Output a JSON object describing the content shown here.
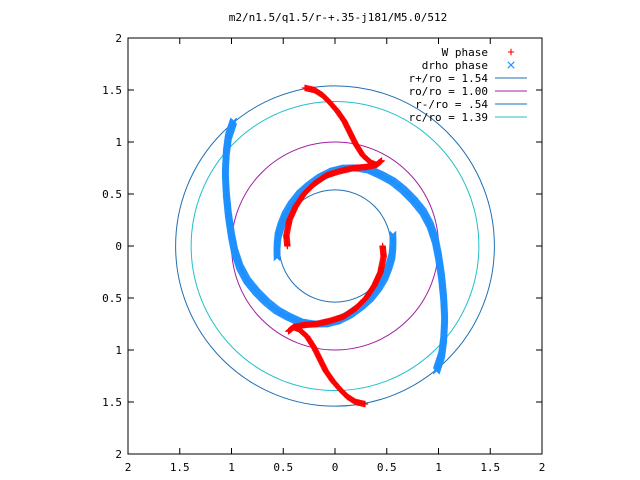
{
  "chart_data": {
    "type": "scatter",
    "title": "m2/n1.5/q1.5/r-+.35-j181/M5.0/512",
    "xlabel": "",
    "ylabel": "",
    "xlim": [
      -2,
      2
    ],
    "ylim": [
      -2,
      2
    ],
    "x_ticks": [
      "2",
      "1.5",
      "1",
      "0.5",
      "0",
      "0.5",
      "1",
      "1.5",
      "2"
    ],
    "y_ticks": [
      "2",
      "1.5",
      "1",
      "0.5",
      "0",
      "0.5",
      "1",
      "1.5",
      "2"
    ],
    "grid": false,
    "legend_position": "top-right",
    "legend": [
      {
        "label": "W phase",
        "kind": "plus",
        "color": "#ff0000"
      },
      {
        "label": "drho phase",
        "kind": "cross",
        "color": "#1e90ff"
      },
      {
        "label": "r+/ro = 1.54",
        "kind": "line",
        "color": "#1f6fb5"
      },
      {
        "label": "ro/ro = 1.00",
        "kind": "line",
        "color": "#a020a0"
      },
      {
        "label": "r-/ro = .54",
        "kind": "line",
        "color": "#1f6fb5"
      },
      {
        "label": "rc/ro = 1.39",
        "kind": "line",
        "color": "#20c0c8"
      }
    ],
    "circles": [
      {
        "name": "r+/ro",
        "r": 1.54,
        "color": "#1f6fb5"
      },
      {
        "name": "ro/ro",
        "r": 1.0,
        "color": "#a020a0"
      },
      {
        "name": "r-/ro",
        "r": 0.54,
        "color": "#1f6fb5"
      },
      {
        "name": "rc/ro",
        "r": 1.39,
        "color": "#20c0c8"
      }
    ],
    "series": [
      {
        "name": "W phase",
        "marker": "plus",
        "color": "#ff0000",
        "points": [
          [
            -0.29,
            1.52
          ],
          [
            -0.2,
            1.5
          ],
          [
            -0.12,
            1.45
          ],
          [
            -0.05,
            1.38
          ],
          [
            0.02,
            1.3
          ],
          [
            0.09,
            1.2
          ],
          [
            0.15,
            1.08
          ],
          [
            0.2,
            0.98
          ],
          [
            0.27,
            0.87
          ],
          [
            0.35,
            0.8
          ],
          [
            0.4,
            0.78
          ],
          [
            0.45,
            0.82
          ],
          [
            0.4,
            0.78
          ],
          [
            0.3,
            0.76
          ],
          [
            0.18,
            0.75
          ],
          [
            0.05,
            0.72
          ],
          [
            -0.08,
            0.68
          ],
          [
            -0.2,
            0.6
          ],
          [
            -0.3,
            0.5
          ],
          [
            -0.38,
            0.38
          ],
          [
            -0.44,
            0.25
          ],
          [
            -0.47,
            0.1
          ],
          [
            -0.46,
            0.0
          ],
          [
            0.29,
            -1.52
          ],
          [
            0.2,
            -1.5
          ],
          [
            0.12,
            -1.45
          ],
          [
            0.05,
            -1.38
          ],
          [
            -0.02,
            -1.3
          ],
          [
            -0.09,
            -1.2
          ],
          [
            -0.15,
            -1.08
          ],
          [
            -0.2,
            -0.98
          ],
          [
            -0.27,
            -0.87
          ],
          [
            -0.35,
            -0.8
          ],
          [
            -0.4,
            -0.78
          ],
          [
            -0.45,
            -0.82
          ],
          [
            -0.4,
            -0.78
          ],
          [
            -0.3,
            -0.76
          ],
          [
            -0.18,
            -0.75
          ],
          [
            -0.05,
            -0.72
          ],
          [
            0.08,
            -0.68
          ],
          [
            0.2,
            -0.6
          ],
          [
            0.3,
            -0.5
          ],
          [
            0.38,
            -0.38
          ],
          [
            0.44,
            -0.25
          ],
          [
            0.47,
            -0.1
          ],
          [
            0.46,
            0.0
          ]
        ]
      },
      {
        "name": "drho phase",
        "marker": "cross",
        "color": "#1e90ff",
        "points": [
          [
            -0.56,
            -0.11
          ],
          [
            -0.56,
            0.0
          ],
          [
            -0.55,
            0.1
          ],
          [
            -0.52,
            0.2
          ],
          [
            -0.48,
            0.3
          ],
          [
            -0.42,
            0.4
          ],
          [
            -0.34,
            0.5
          ],
          [
            -0.25,
            0.58
          ],
          [
            -0.14,
            0.66
          ],
          [
            -0.02,
            0.72
          ],
          [
            0.1,
            0.75
          ],
          [
            0.22,
            0.75
          ],
          [
            0.34,
            0.73
          ],
          [
            0.45,
            0.68
          ],
          [
            0.56,
            0.62
          ],
          [
            0.66,
            0.54
          ],
          [
            0.76,
            0.44
          ],
          [
            0.85,
            0.33
          ],
          [
            0.92,
            0.2
          ],
          [
            0.97,
            0.05
          ],
          [
            1.0,
            -0.1
          ],
          [
            1.03,
            -0.3
          ],
          [
            1.05,
            -0.5
          ],
          [
            1.06,
            -0.7
          ],
          [
            1.05,
            -0.9
          ],
          [
            1.03,
            -1.05
          ],
          [
            0.98,
            -1.2
          ],
          [
            0.56,
            0.11
          ],
          [
            0.56,
            0.0
          ],
          [
            0.55,
            -0.1
          ],
          [
            0.52,
            -0.2
          ],
          [
            0.48,
            -0.3
          ],
          [
            0.42,
            -0.4
          ],
          [
            0.34,
            -0.5
          ],
          [
            0.25,
            -0.58
          ],
          [
            0.14,
            -0.66
          ],
          [
            0.02,
            -0.72
          ],
          [
            -0.1,
            -0.75
          ],
          [
            -0.22,
            -0.75
          ],
          [
            -0.34,
            -0.73
          ],
          [
            -0.45,
            -0.68
          ],
          [
            -0.56,
            -0.62
          ],
          [
            -0.66,
            -0.54
          ],
          [
            -0.76,
            -0.44
          ],
          [
            -0.85,
            -0.33
          ],
          [
            -0.92,
            -0.2
          ],
          [
            -0.97,
            -0.05
          ],
          [
            -1.0,
            0.1
          ],
          [
            -1.03,
            0.3
          ],
          [
            -1.05,
            0.5
          ],
          [
            -1.06,
            0.7
          ],
          [
            -1.05,
            0.9
          ],
          [
            -1.03,
            1.05
          ],
          [
            -0.98,
            1.2
          ]
        ]
      }
    ]
  }
}
